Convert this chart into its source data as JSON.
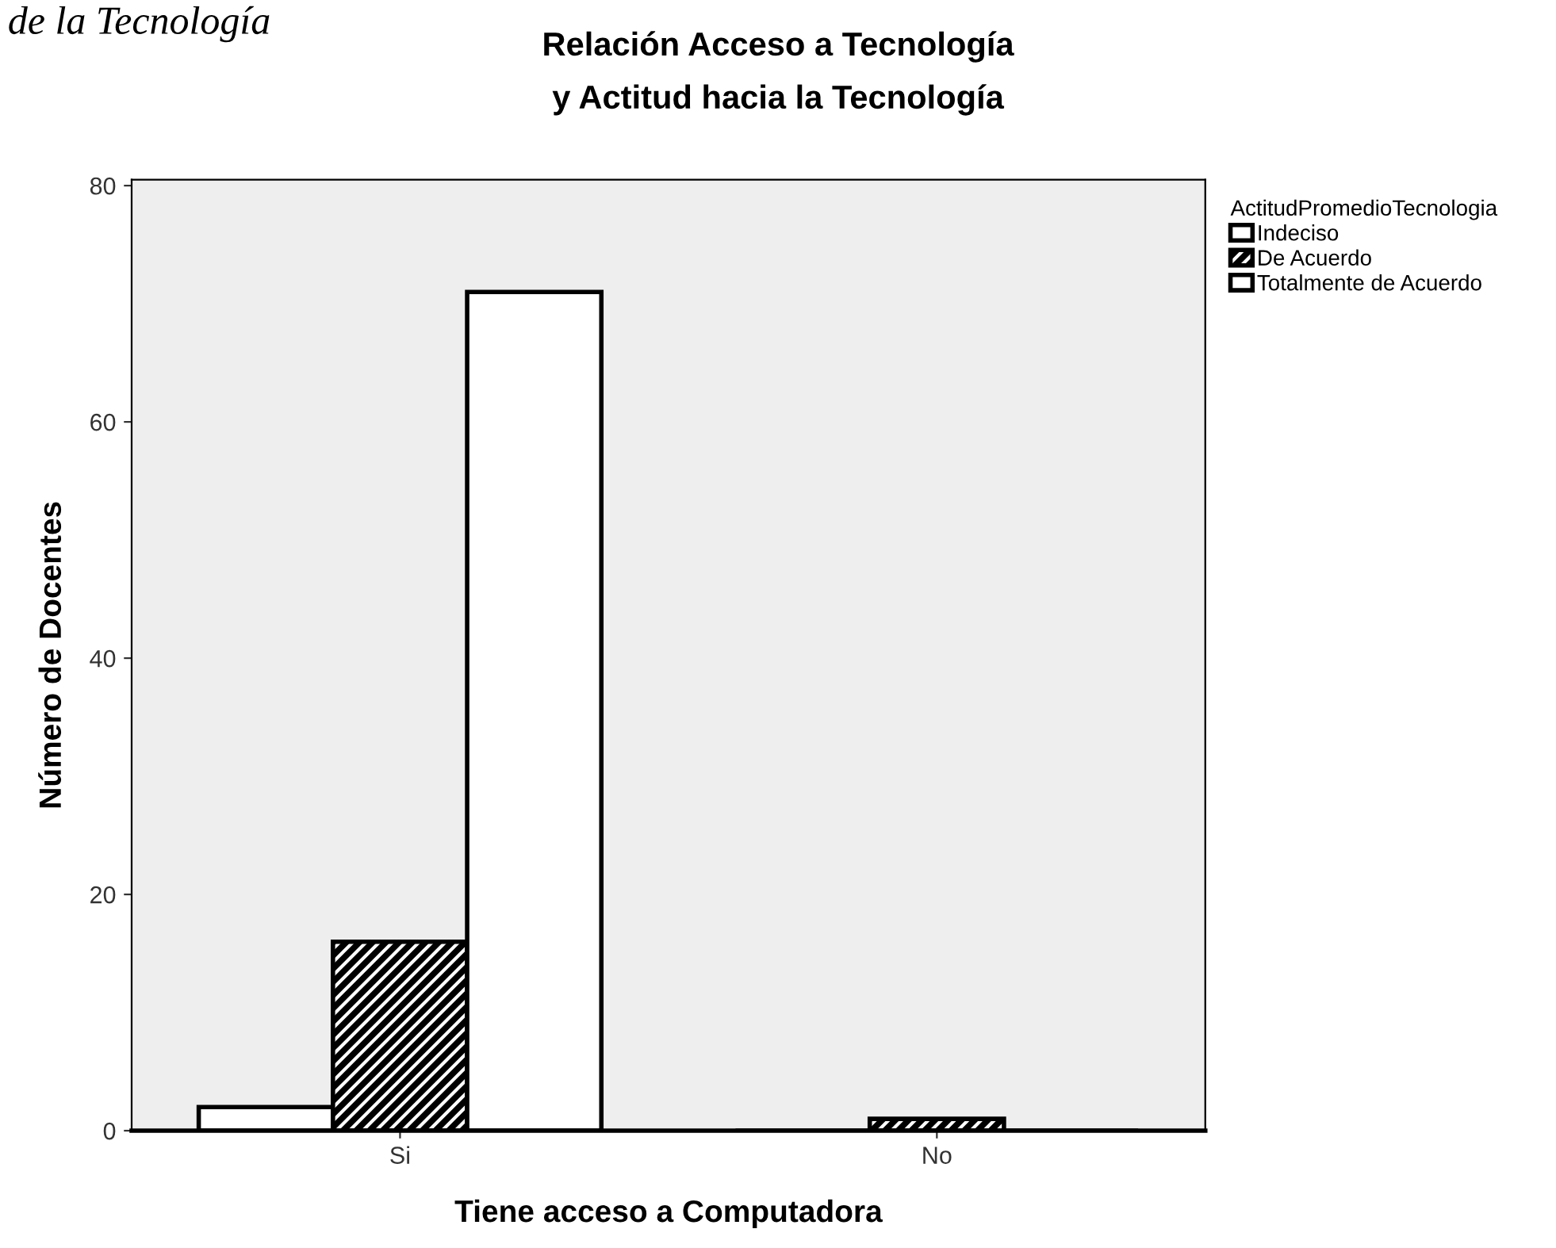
{
  "chart_data": {
    "type": "bar",
    "title": "Relación Acceso a Tecnología\ny Actitud hacia la Tecnología",
    "xlabel": "Tiene acceso a Computadora",
    "ylabel": "Número de Docentes",
    "legend_title": "ActitudPromedioTecnologia",
    "annotations": [
      "de la Tecnología"
    ],
    "categories": [
      "Si",
      "No"
    ],
    "series": [
      {
        "name": "Indeciso",
        "color": "#ffffff",
        "values": [
          2,
          0
        ]
      },
      {
        "name": "De Acuerdo",
        "color": "#000000",
        "values": [
          16,
          1
        ]
      },
      {
        "name": "Totalmente de Acuerdo",
        "color": "#ffffff",
        "values": [
          71,
          0
        ]
      }
    ],
    "ylim": [
      0,
      80.5
    ],
    "yticks": [
      0,
      20,
      40,
      60,
      80
    ],
    "grid": false,
    "legend": "right"
  }
}
